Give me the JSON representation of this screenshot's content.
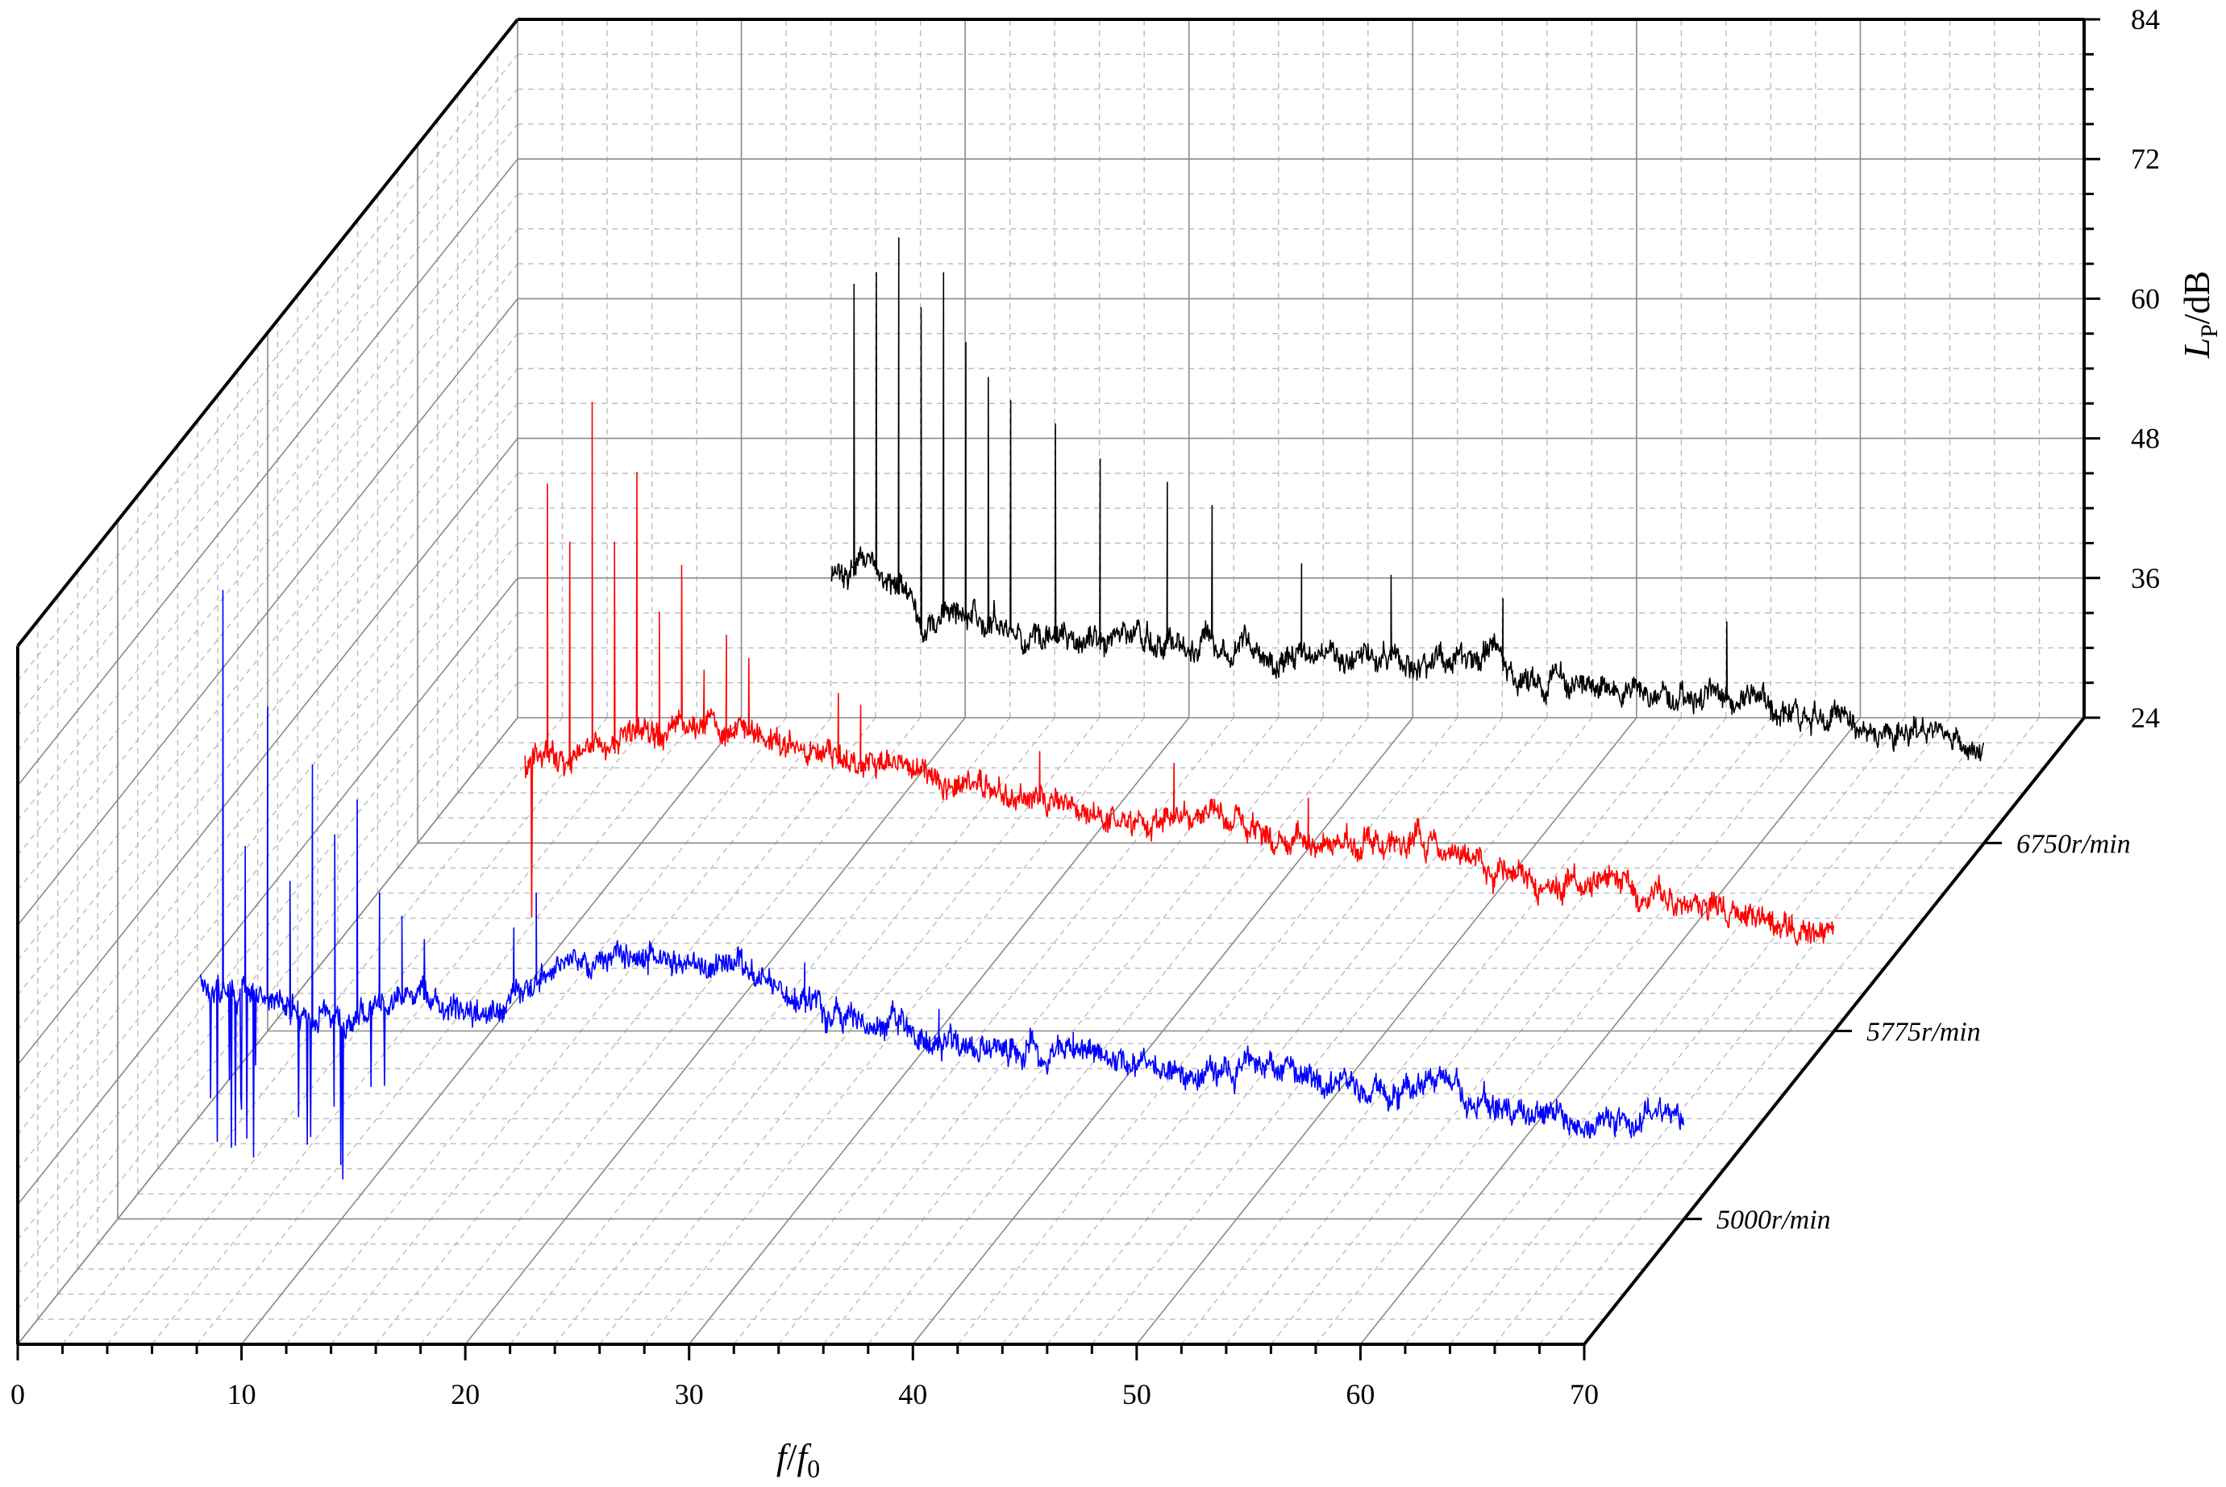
{
  "chart_data": {
    "type": "line",
    "projection": "3d-waterfall",
    "xlabel": {
      "base": "f",
      "sep": "/",
      "base2": "f",
      "sub": "0"
    },
    "ylabel": {
      "base": "L",
      "sub": "P",
      "unit": "/dB"
    },
    "xlim": [
      0,
      70
    ],
    "ylim": [
      24,
      84
    ],
    "x_ticks": [
      "0",
      "10",
      "20",
      "30",
      "40",
      "50",
      "60",
      "70"
    ],
    "y_ticks": [
      "24",
      "36",
      "48",
      "60",
      "72",
      "84"
    ],
    "grid": true,
    "series": [
      {
        "name": "5000r/min",
        "color": "#0000ff",
        "baseline": [
          44,
          46,
          44,
          43,
          41,
          42,
          43,
          41,
          44,
          46,
          47,
          46,
          45,
          44,
          42,
          41,
          40,
          39,
          38,
          38,
          38,
          36,
          37,
          37,
          36,
          35,
          35,
          34,
          33,
          32,
          33,
          33
        ],
        "peaks": [
          {
            "x": 1,
            "y": 78
          },
          {
            "x": 2,
            "y": 56
          },
          {
            "x": 3,
            "y": 68
          },
          {
            "x": 4,
            "y": 53
          },
          {
            "x": 5,
            "y": 63
          },
          {
            "x": 6,
            "y": 57
          },
          {
            "x": 7,
            "y": 60
          },
          {
            "x": 8,
            "y": 52
          },
          {
            "x": 9,
            "y": 50
          },
          {
            "x": 10,
            "y": 48
          },
          {
            "x": 14,
            "y": 49
          },
          {
            "x": 15,
            "y": 52
          },
          {
            "x": 20,
            "y": 45
          },
          {
            "x": 27,
            "y": 46
          },
          {
            "x": 33,
            "y": 42
          },
          {
            "x": 39,
            "y": 40
          }
        ]
      },
      {
        "name": "5775r/min",
        "color": "#ff0000",
        "baseline": [
          50,
          52,
          50,
          49,
          48,
          47,
          48,
          49,
          51,
          50,
          49,
          48,
          47,
          46,
          45,
          44,
          43,
          42,
          42,
          42,
          41,
          40,
          40,
          40,
          38,
          37,
          37,
          36,
          35,
          34,
          33,
          33
        ],
        "peaks": [
          {
            "x": 1,
            "y": 71
          },
          {
            "x": 2,
            "y": 66
          },
          {
            "x": 3,
            "y": 78
          },
          {
            "x": 4,
            "y": 66
          },
          {
            "x": 5,
            "y": 72
          },
          {
            "x": 6,
            "y": 60
          },
          {
            "x": 7,
            "y": 64
          },
          {
            "x": 8,
            "y": 55
          },
          {
            "x": 9,
            "y": 58
          },
          {
            "x": 10,
            "y": 56
          },
          {
            "x": 14,
            "y": 53
          },
          {
            "x": 15,
            "y": 52
          },
          {
            "x": 23,
            "y": 48
          },
          {
            "x": 29,
            "y": 47
          },
          {
            "x": 35,
            "y": 44
          }
        ]
      },
      {
        "name": "6750r/min",
        "color": "#000000",
        "baseline": [
          50,
          47,
          50,
          51,
          48,
          47,
          46,
          49,
          47,
          48,
          43,
          44,
          42,
          41,
          42,
          41,
          42,
          40,
          40,
          40,
          39,
          41,
          38,
          38,
          37,
          36,
          37,
          35,
          35,
          33,
          34,
          31
        ],
        "peaks": [
          {
            "x": 1,
            "y": 72
          },
          {
            "x": 2,
            "y": 73
          },
          {
            "x": 3,
            "y": 76
          },
          {
            "x": 4,
            "y": 70
          },
          {
            "x": 5,
            "y": 73
          },
          {
            "x": 6,
            "y": 67
          },
          {
            "x": 7,
            "y": 64
          },
          {
            "x": 8,
            "y": 62
          },
          {
            "x": 10,
            "y": 60
          },
          {
            "x": 12,
            "y": 57
          },
          {
            "x": 15,
            "y": 55
          },
          {
            "x": 17,
            "y": 53
          },
          {
            "x": 21,
            "y": 48
          },
          {
            "x": 25,
            "y": 47
          },
          {
            "x": 30,
            "y": 45
          },
          {
            "x": 40,
            "y": 43
          }
        ]
      }
    ]
  }
}
